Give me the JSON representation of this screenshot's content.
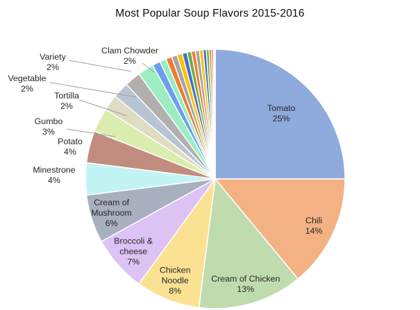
{
  "chart_data": {
    "type": "pie",
    "title": "Most Popular Soup Flavors 2015-2016",
    "legend": "none",
    "direction": "clockwise",
    "start_angle_deg": 0,
    "background_color": "#FFFFFF",
    "divider_color": "#FFFFFF",
    "label_color": "#262626",
    "leader_line_color": "#9E9E9E",
    "slices": [
      {
        "name": "Tomato",
        "value": 25,
        "color": "#8FAADC",
        "label_placement": "inside",
        "label_lines": [
          "Tomato",
          "25%"
        ]
      },
      {
        "name": "Chili",
        "value": 14,
        "color": "#F4B183",
        "label_placement": "inside",
        "label_lines": [
          "Chili",
          "14%"
        ]
      },
      {
        "name": "Cream of Chicken",
        "value": 13,
        "color": "#C0DCAE",
        "label_placement": "inside",
        "label_lines": [
          "Cream of Chicken",
          "13%"
        ]
      },
      {
        "name": "Chicken Noodle",
        "value": 8,
        "color": "#FBE293",
        "label_placement": "inside",
        "label_lines": [
          "Chicken",
          "Noodle",
          "8%"
        ]
      },
      {
        "name": "Broccoli & cheese",
        "value": 7,
        "color": "#DCC3F3",
        "label_placement": "inside",
        "label_lines": [
          "Broccoli &",
          "cheese",
          "7%"
        ]
      },
      {
        "name": "Cream of Mushroom",
        "value": 6,
        "color": "#A8AFBE",
        "label_placement": "inside",
        "label_lines": [
          "Cream of",
          "Mushroom",
          "6%"
        ]
      },
      {
        "name": "Minestrone",
        "value": 4,
        "color": "#C2F4F4",
        "label_placement": "outside",
        "label_lines": [
          "Minestrone",
          "4%"
        ]
      },
      {
        "name": "Potato",
        "value": 4,
        "color": "#C08D7E",
        "label_placement": "outside",
        "label_lines": [
          "Potato",
          "4%"
        ]
      },
      {
        "name": "Gumbo",
        "value": 3,
        "color": "#DBEDAE",
        "label_placement": "outside",
        "label_lines": [
          "Gumbo",
          "3%"
        ]
      },
      {
        "name": "Tortilla",
        "value": 2,
        "color": "#DFDCC3",
        "label_placement": "outside",
        "label_lines": [
          "Tortilla",
          "2%"
        ]
      },
      {
        "name": "Vegetable",
        "value": 2,
        "color": "#B8C4D4",
        "label_placement": "outside",
        "label_lines": [
          "Vegetable",
          "2%"
        ]
      },
      {
        "name": "Variety",
        "value": 2,
        "color": "#B2B0AE",
        "label_placement": "outside",
        "label_lines": [
          "Variety",
          "2%"
        ]
      },
      {
        "name": "Clam Chowder",
        "value": 2,
        "color": "#9CEDC0",
        "label_placement": "outside",
        "label_lines": [
          "Clam Chowder",
          "2%"
        ]
      }
    ],
    "unlabeled_slivers": {
      "total_value": 8,
      "values": [
        1.0,
        0.8,
        0.75,
        0.7,
        0.65,
        0.6,
        0.55,
        0.5,
        0.5,
        0.45,
        0.4,
        0.35,
        0.3,
        0.2,
        0.15,
        0.1
      ],
      "colors": [
        "#6D9EEB",
        "#93EDC7",
        "#ED7D31",
        "#A5A5A5",
        "#FFC000",
        "#4472C4",
        "#70AD47",
        "#ED7D31",
        "#A5A5A5",
        "#FFC000",
        "#4472C4",
        "#70AD47",
        "#ED7D31",
        "#843C0C",
        "#A5A5A5",
        "#4472C4"
      ]
    }
  }
}
